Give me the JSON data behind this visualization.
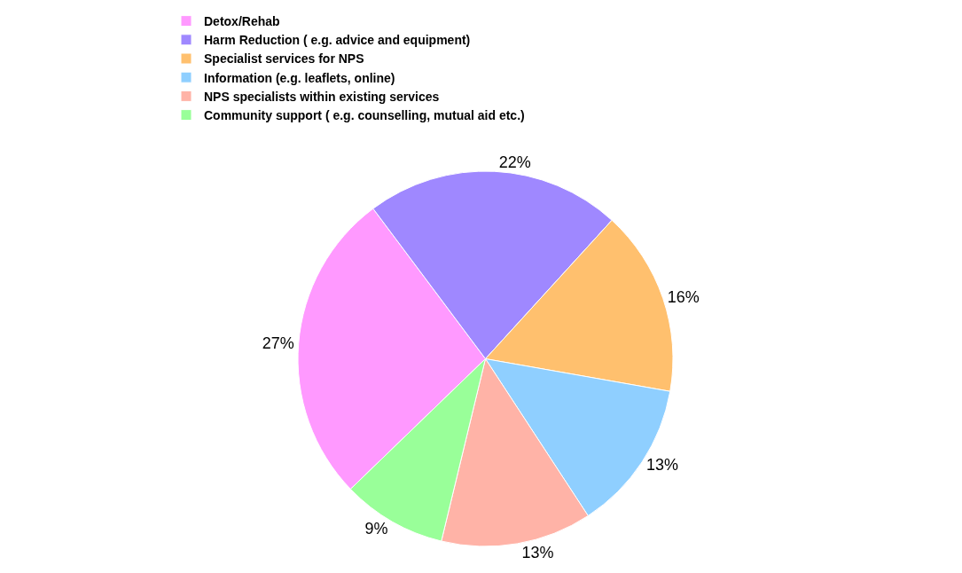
{
  "chart_data": {
    "type": "pie",
    "categories": [
      "Detox/Rehab",
      "Harm Reduction ( e.g. advice and equipment)",
      "Specialist services for NPS",
      "Information (e.g. leaflets, online)",
      "NPS specialists within existing services",
      "Community support ( e.g. counselling, mutual aid etc.)"
    ],
    "values": [
      27,
      22,
      16,
      13,
      13,
      9
    ],
    "value_labels": [
      "27%",
      "22%",
      "16%",
      "13%",
      "13%",
      "9%"
    ],
    "colors": [
      "#ff99ff",
      "#9f88ff",
      "#ffc06e",
      "#8fcfff",
      "#ffb3a7",
      "#99ff99"
    ],
    "legend": "top"
  }
}
